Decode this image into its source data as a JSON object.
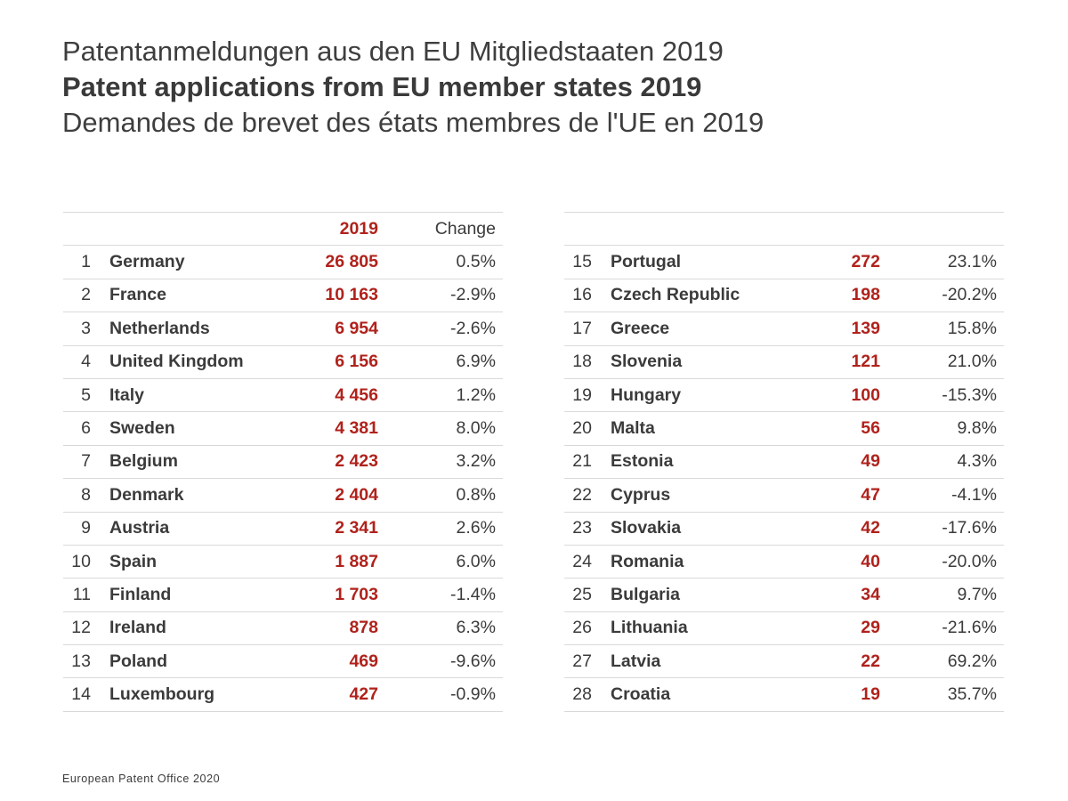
{
  "title": {
    "de": "Patentanmeldungen aus den EU Mitgliedstaaten 2019",
    "en": "Patent applications from EU member states 2019",
    "fr": "Demandes de brevet des états membres de l'UE en 2019"
  },
  "table_header": {
    "year": "2019",
    "change": "Change"
  },
  "colors": {
    "accent": "#b0221c",
    "text": "#3b3b3b",
    "rule": "#d9d9d9"
  },
  "rows_left": [
    {
      "rank": "1",
      "country": "Germany",
      "value": "26 805",
      "change": "0.5%"
    },
    {
      "rank": "2",
      "country": "France",
      "value": "10 163",
      "change": "-2.9%"
    },
    {
      "rank": "3",
      "country": "Netherlands",
      "value": "6 954",
      "change": "-2.6%"
    },
    {
      "rank": "4",
      "country": "United Kingdom",
      "value": "6 156",
      "change": "6.9%"
    },
    {
      "rank": "5",
      "country": "Italy",
      "value": "4 456",
      "change": "1.2%"
    },
    {
      "rank": "6",
      "country": "Sweden",
      "value": "4 381",
      "change": "8.0%"
    },
    {
      "rank": "7",
      "country": "Belgium",
      "value": "2 423",
      "change": "3.2%"
    },
    {
      "rank": "8",
      "country": "Denmark",
      "value": "2 404",
      "change": "0.8%"
    },
    {
      "rank": "9",
      "country": "Austria",
      "value": "2 341",
      "change": "2.6%"
    },
    {
      "rank": "10",
      "country": "Spain",
      "value": "1 887",
      "change": "6.0%"
    },
    {
      "rank": "11",
      "country": "Finland",
      "value": "1 703",
      "change": "-1.4%"
    },
    {
      "rank": "12",
      "country": "Ireland",
      "value": "878",
      "change": "6.3%"
    },
    {
      "rank": "13",
      "country": "Poland",
      "value": "469",
      "change": "-9.6%"
    },
    {
      "rank": "14",
      "country": "Luxembourg",
      "value": "427",
      "change": "-0.9%"
    }
  ],
  "rows_right": [
    {
      "rank": "15",
      "country": "Portugal",
      "value": "272",
      "change": "23.1%"
    },
    {
      "rank": "16",
      "country": "Czech Republic",
      "value": "198",
      "change": "-20.2%"
    },
    {
      "rank": "17",
      "country": "Greece",
      "value": "139",
      "change": "15.8%"
    },
    {
      "rank": "18",
      "country": "Slovenia",
      "value": "121",
      "change": "21.0%"
    },
    {
      "rank": "19",
      "country": "Hungary",
      "value": "100",
      "change": "-15.3%"
    },
    {
      "rank": "20",
      "country": "Malta",
      "value": "56",
      "change": "9.8%"
    },
    {
      "rank": "21",
      "country": "Estonia",
      "value": "49",
      "change": "4.3%"
    },
    {
      "rank": "22",
      "country": "Cyprus",
      "value": "47",
      "change": "-4.1%"
    },
    {
      "rank": "23",
      "country": "Slovakia",
      "value": "42",
      "change": "-17.6%"
    },
    {
      "rank": "24",
      "country": "Romania",
      "value": "40",
      "change": "-20.0%"
    },
    {
      "rank": "25",
      "country": "Bulgaria",
      "value": "34",
      "change": "9.7%"
    },
    {
      "rank": "26",
      "country": "Lithuania",
      "value": "29",
      "change": "-21.6%"
    },
    {
      "rank": "27",
      "country": "Latvia",
      "value": "22",
      "change": "69.2%"
    },
    {
      "rank": "28",
      "country": "Croatia",
      "value": "19",
      "change": "35.7%"
    }
  ],
  "footer": "European Patent Office 2020"
}
